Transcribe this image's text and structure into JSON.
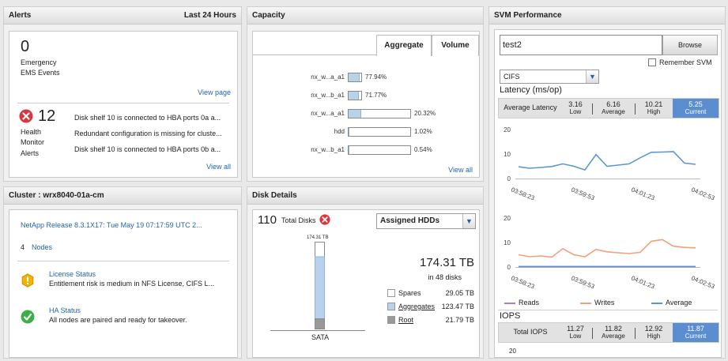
{
  "alerts": {
    "title": "Alerts",
    "range": "Last 24 Hours",
    "emergency_count": "0",
    "emergency_label_1": "Emergency",
    "emergency_label_2": "EMS Events",
    "view_page": "View page",
    "health_count": "12",
    "health_label_1": "Health",
    "health_label_2": "Monitor",
    "health_label_3": "Alerts",
    "messages": [
      "Disk shelf 10 is connected to HBA ports 0a a...",
      "Redundant configuration is missing for cluste...",
      "Disk shelf 10 is connected to HBA ports 0b a..."
    ],
    "view_all": "View all"
  },
  "capacity": {
    "title": "Capacity",
    "tabs": [
      "Aggregate",
      "Volume"
    ],
    "bars": [
      {
        "label": "nx_w...a_a1",
        "pct_text": "77.94%",
        "value": 77.94
      },
      {
        "label": "nx_w...b_a1",
        "pct_text": "71.77%",
        "value": 71.77
      },
      {
        "label": "nx_w...a_a1",
        "pct_text": "20.32%",
        "value": 20.32
      },
      {
        "label": "hdd",
        "pct_text": "1.02%",
        "value": 1.02
      },
      {
        "label": "nx_w...b_a1",
        "pct_text": "0.54%",
        "value": 0.54
      }
    ],
    "view_all": "View all"
  },
  "cluster": {
    "title": "Cluster : wrx8040-01a-cm",
    "release": "NetApp Release 8.3.1X17: Tue May 19 07:17:59 UTC 2...",
    "nodes_count": "4",
    "nodes_label": "Nodes",
    "license_title": "License Status",
    "license_text": "Entitlement risk is medium in NFS License, CIFS L...",
    "ha_title": "HA Status",
    "ha_text": "All nodes are paired and ready for takeover."
  },
  "disk": {
    "title": "Disk Details",
    "total_count": "110",
    "total_label": "Total Disks",
    "selector": "Assigned HDDs",
    "bar_top_label": "174.31 TB",
    "bar_category": "SATA",
    "total_size": "174.31 TB",
    "in_disks": "in 48 disks",
    "legend": [
      {
        "label": "Spares",
        "value": "29.05 TB",
        "color": "#ffffff"
      },
      {
        "label": "Aggregates",
        "value": "123.47 TB",
        "color": "#b9d2ea"
      },
      {
        "label": "Root",
        "value": "21.79 TB",
        "color": "#999999"
      }
    ],
    "stack_values": {
      "spares": 29.05,
      "aggregates": 123.47,
      "root": 21.79
    }
  },
  "svm": {
    "title": "SVM Performance",
    "svm_value": "test2",
    "browse": "Browse",
    "remember": "Remember SVM",
    "protocol": "CIFS",
    "latency_title": "Latency (ms/op)",
    "latency": {
      "label": "Average Latency",
      "low": "3.16",
      "low_label": "Low",
      "avg": "6.16",
      "avg_label": "Average",
      "high": "10.21",
      "high_label": "High",
      "current": "5.25",
      "current_label": "Current"
    },
    "iops_title": "IOPS",
    "iops": {
      "label": "Total IOPS",
      "low": "11.27",
      "low_label": "Low",
      "avg": "11.82",
      "avg_label": "Average",
      "high": "12.92",
      "high_label": "High",
      "current": "11.87",
      "current_label": "Current"
    },
    "legend": [
      {
        "label": "Reads",
        "color": "#b07cc6"
      },
      {
        "label": "Writes",
        "color": "#f0a07a"
      },
      {
        "label": "Average",
        "color": "#5a97d1"
      }
    ],
    "iops_axis_top": "20"
  },
  "chart_data": [
    {
      "type": "line",
      "title": "",
      "x_ticks": [
        "03:58:23",
        "03:59:53",
        "04:01:23",
        "04:02:53"
      ],
      "y_ticks": [
        0,
        10,
        20
      ],
      "ylim": [
        0,
        20
      ],
      "series": [
        {
          "color": "#5a97d1",
          "values": [
            4.8,
            4.2,
            4.5,
            4.9,
            6.0,
            5.0,
            3.5,
            9.8,
            5.0,
            5.5,
            6.0,
            8.5,
            10.7,
            10.8,
            11.0,
            6.3,
            5.8
          ]
        }
      ]
    },
    {
      "type": "line",
      "title": "",
      "x_ticks": [
        "03:58:23",
        "03:59:53",
        "04:01:23",
        "04:02:53"
      ],
      "y_ticks": [
        0,
        10,
        20
      ],
      "ylim": [
        0,
        20
      ],
      "series": [
        {
          "name": "Reads",
          "color": "#b07cc6",
          "values": [
            0.2,
            0.2,
            0.2,
            0.2,
            0.2,
            0.2,
            0.2,
            0.2,
            0.2,
            0.2,
            0.2,
            0.2,
            0.2,
            0.2,
            0.2,
            0.2,
            0.2
          ]
        },
        {
          "name": "Writes",
          "color": "#f0a07a",
          "values": [
            5.0,
            4.2,
            4.5,
            4.0,
            7.5,
            5.0,
            4.2,
            7.2,
            6.2,
            5.8,
            5.5,
            6.0,
            10.5,
            11.2,
            8.5,
            8.0,
            7.8
          ]
        },
        {
          "name": "Average",
          "color": "#5a97d1",
          "values": [
            0.2,
            0.2,
            0.2,
            0.2,
            0.2,
            0.2,
            0.2,
            0.2,
            0.2,
            0.2,
            0.2,
            0.2,
            0.2,
            0.2,
            0.2,
            0.2,
            0.2
          ]
        }
      ]
    }
  ]
}
